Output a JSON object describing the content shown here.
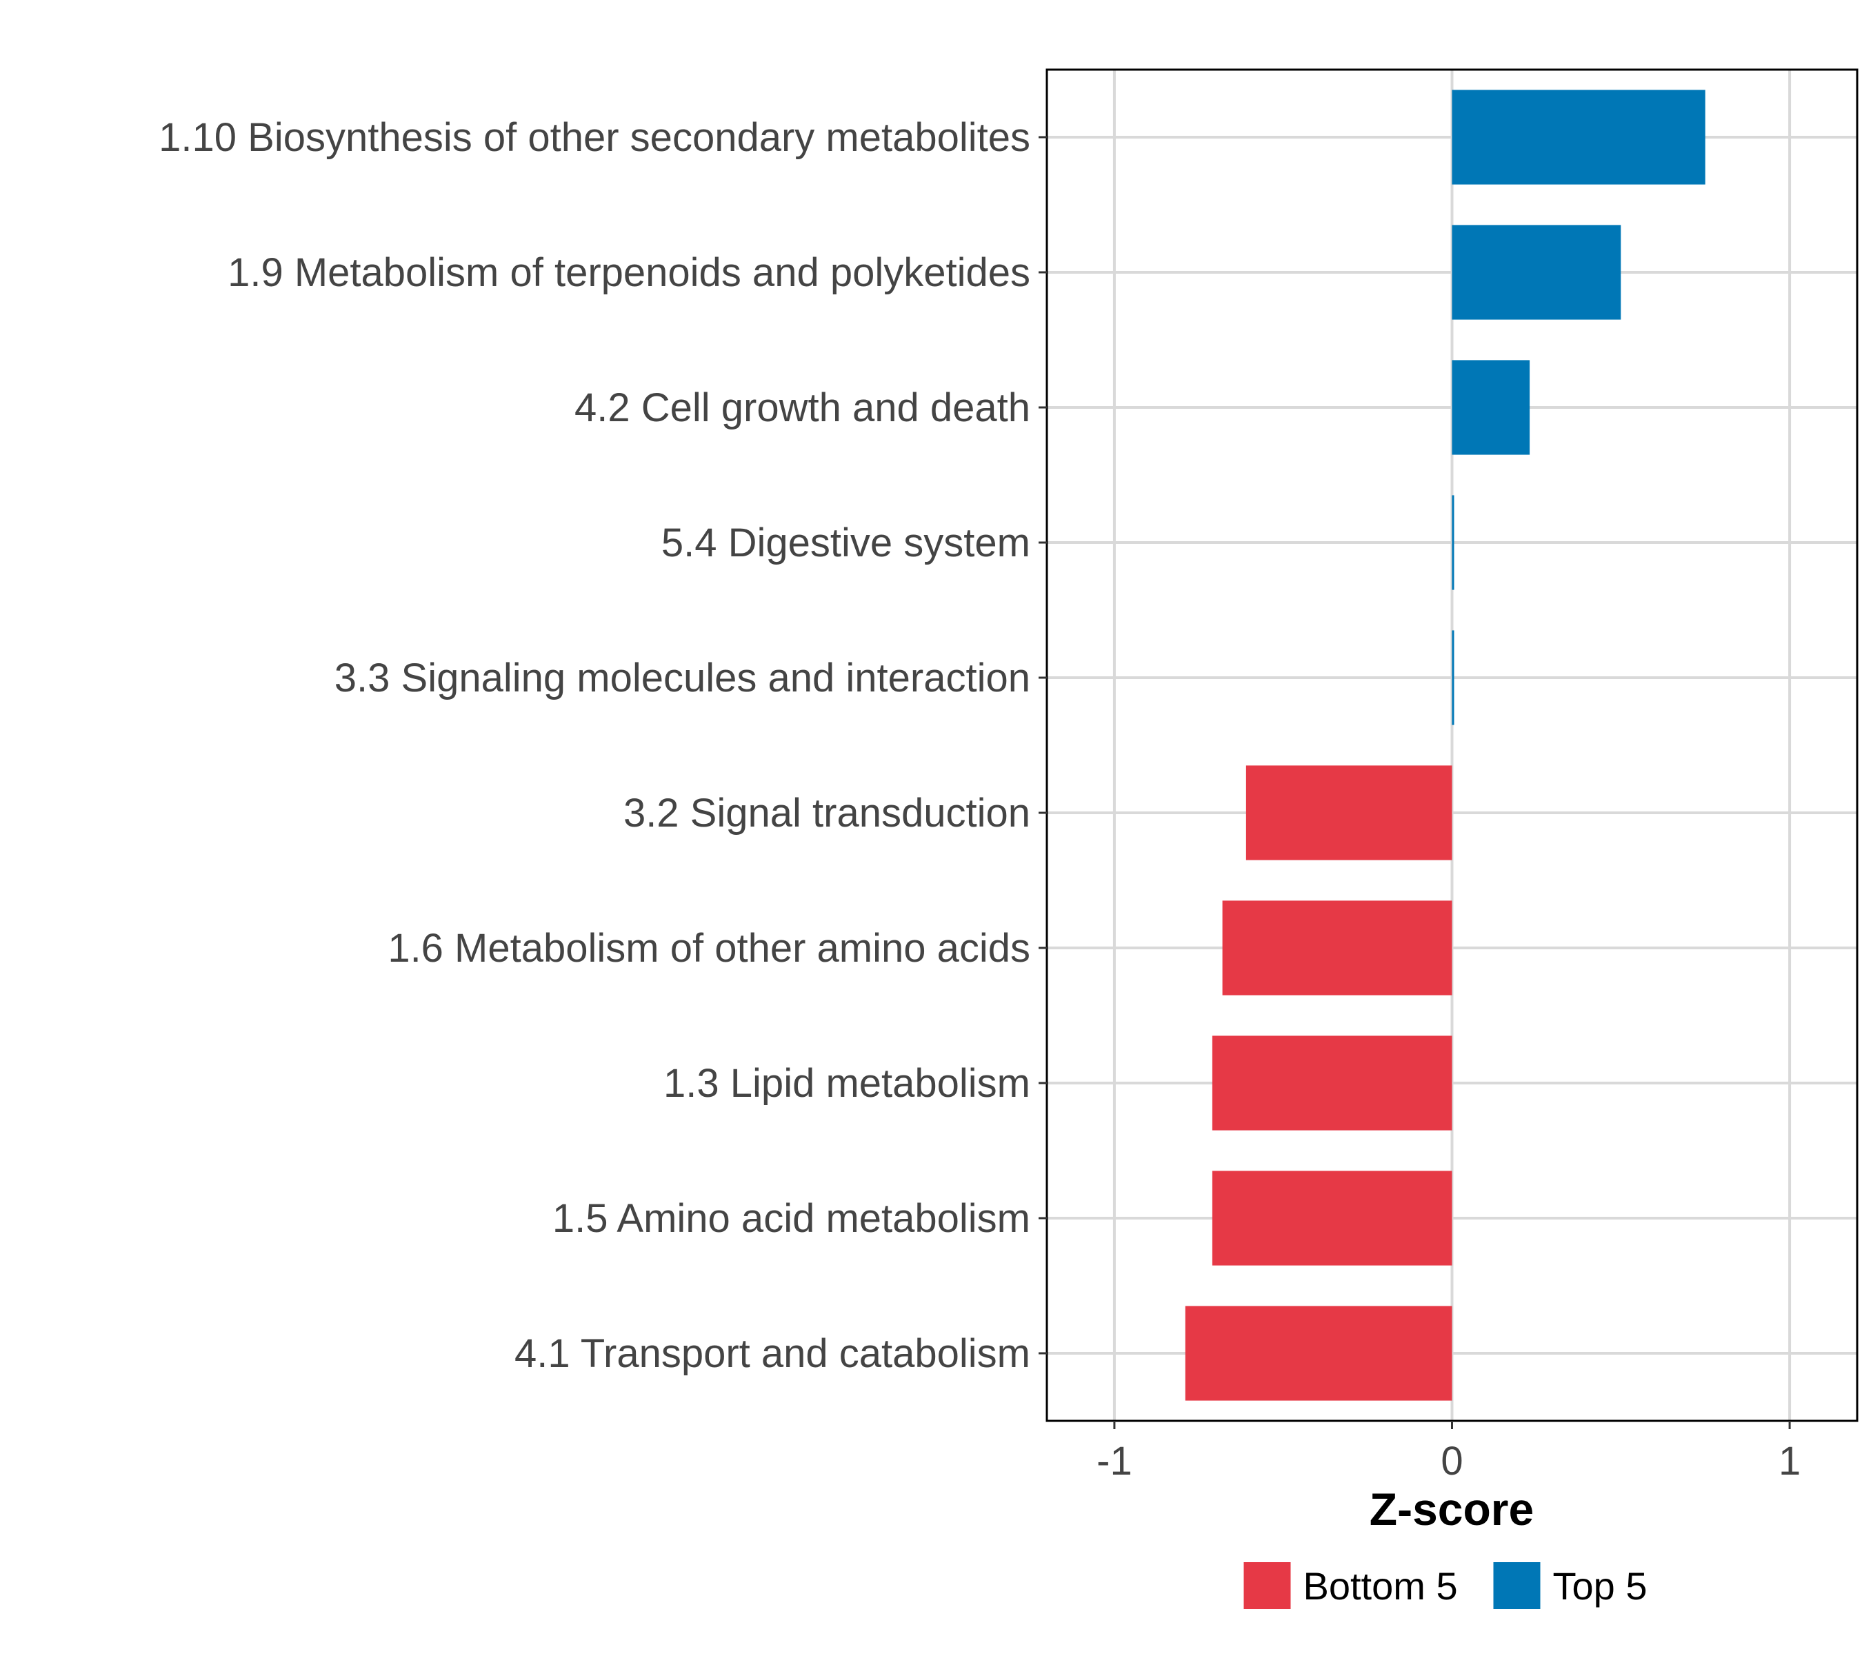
{
  "chart_data": {
    "type": "bar",
    "orientation": "horizontal",
    "title": "",
    "xlabel": "Z-score",
    "ylabel": "",
    "xlim": [
      -1.2,
      1.2
    ],
    "xticks": [
      -1,
      0,
      1
    ],
    "xtick_labels": [
      "-1",
      "0",
      "1"
    ],
    "grid": true,
    "legend_position": "bottom",
    "categories": [
      "1.10 Biosynthesis of other secondary metabolites",
      "1.9 Metabolism of terpenoids and polyketides",
      "4.2 Cell growth and death",
      "5.4 Digestive system",
      "3.3 Signaling molecules and interaction",
      "3.2 Signal transduction",
      "1.6 Metabolism of other amino acids",
      "1.3 Lipid metabolism",
      "1.5 Amino acid metabolism",
      "4.1 Transport and catabolism"
    ],
    "values": [
      0.75,
      0.5,
      0.23,
      0.005,
      0.005,
      -0.61,
      -0.68,
      -0.71,
      -0.71,
      -0.79
    ],
    "groups": [
      "Top 5",
      "Top 5",
      "Top 5",
      "Top 5",
      "Top 5",
      "Bottom 5",
      "Bottom 5",
      "Bottom 5",
      "Bottom 5",
      "Bottom 5"
    ],
    "legend": [
      {
        "name": "Bottom 5",
        "color": "#E63946"
      },
      {
        "name": "Top 5",
        "color": "#0077B6"
      }
    ]
  }
}
